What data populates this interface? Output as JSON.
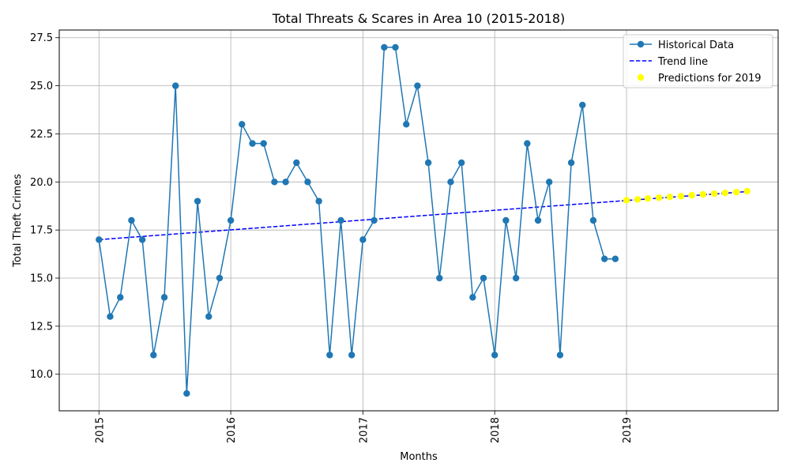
{
  "chart_data": {
    "type": "line",
    "title": "Total Threats & Scares in Area 10 (2015-2018)",
    "xlabel": "Months",
    "ylabel": "Total Theft Crimes",
    "xlim": [
      "2014-09-13",
      "2020-02-25"
    ],
    "ylim": [
      8.1,
      27.9
    ],
    "x_ticks": [
      "2015",
      "2016",
      "2017",
      "2018",
      "2019"
    ],
    "y_ticks": [
      "10.0",
      "12.5",
      "15.0",
      "17.5",
      "20.0",
      "22.5",
      "25.0",
      "27.5"
    ],
    "grid": true,
    "legend_position": "top-right",
    "legend": [
      "Historical Data",
      "Trend line",
      "Predictions for 2019"
    ],
    "colors": {
      "historical": "#1f77b4",
      "trend": "#0000ff",
      "prediction": "#ffff00"
    },
    "series": [
      {
        "name": "Historical Data",
        "style": "line-with-markers",
        "x": [
          "2015-01",
          "2015-02",
          "2015-03",
          "2015-04",
          "2015-05",
          "2015-06",
          "2015-07",
          "2015-08",
          "2015-09",
          "2015-10",
          "2015-11",
          "2015-12",
          "2016-01",
          "2016-02",
          "2016-03",
          "2016-04",
          "2016-05",
          "2016-06",
          "2016-07",
          "2016-08",
          "2016-09",
          "2016-10",
          "2016-11",
          "2016-12",
          "2017-01",
          "2017-02",
          "2017-03",
          "2017-04",
          "2017-05",
          "2017-06",
          "2017-07",
          "2017-08",
          "2017-09",
          "2017-10",
          "2017-11",
          "2017-12",
          "2018-01",
          "2018-02",
          "2018-03",
          "2018-04",
          "2018-05",
          "2018-06",
          "2018-07",
          "2018-08",
          "2018-09",
          "2018-10",
          "2018-11",
          "2018-12"
        ],
        "y": [
          17,
          13,
          14,
          18,
          17,
          11,
          14,
          25,
          9,
          19,
          13,
          15,
          18,
          23,
          22,
          22,
          20,
          20,
          21,
          20,
          19,
          11,
          18,
          11,
          17,
          18,
          27,
          27,
          23,
          25,
          21,
          15,
          20,
          21,
          14,
          15,
          11,
          18,
          15,
          22,
          18,
          20,
          11,
          21,
          24,
          18,
          16,
          16
        ]
      },
      {
        "name": "Trend line",
        "style": "dashed-line",
        "x": [
          "2015-01",
          "2019-12"
        ],
        "y": [
          17.0,
          19.5
        ]
      },
      {
        "name": "Predictions for 2019",
        "style": "scatter",
        "x": [
          "2019-01",
          "2019-02",
          "2019-03",
          "2019-04",
          "2019-05",
          "2019-06",
          "2019-07",
          "2019-08",
          "2019-09",
          "2019-10",
          "2019-11",
          "2019-12"
        ],
        "y": [
          19.05,
          19.09,
          19.14,
          19.18,
          19.22,
          19.26,
          19.31,
          19.35,
          19.39,
          19.43,
          19.47,
          19.52
        ]
      }
    ]
  }
}
